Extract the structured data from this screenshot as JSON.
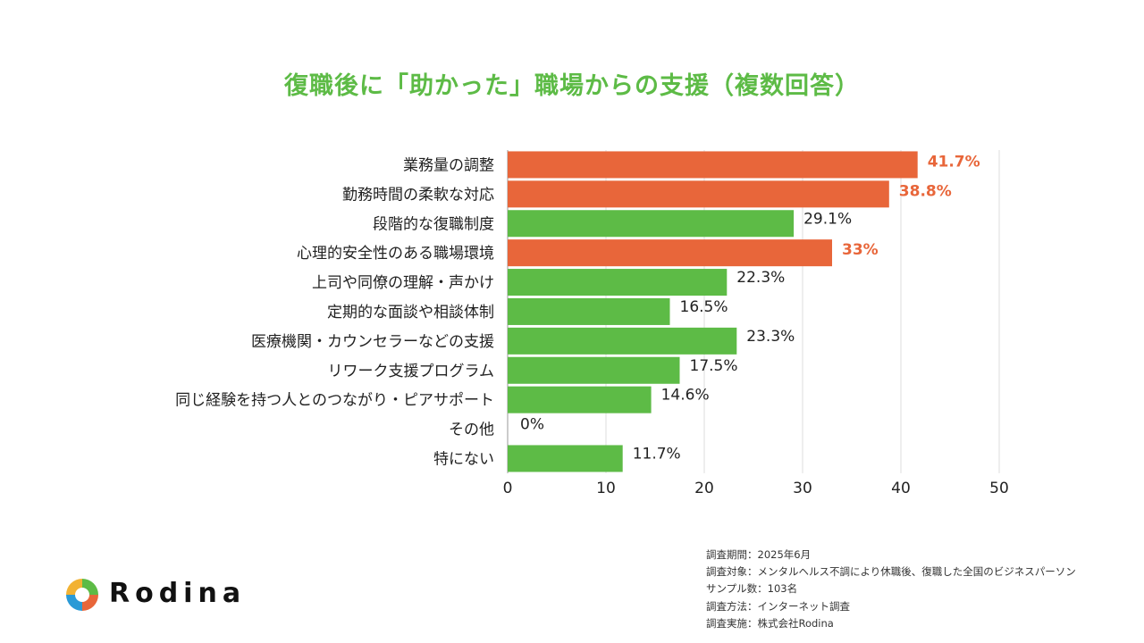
{
  "chart_data": {
    "type": "bar",
    "orientation": "horizontal",
    "title": "復職後に「助かった」職場からの支援（複数回答）",
    "categories": [
      "業務量の調整",
      "勤務時間の柔軟な対応",
      "段階的な復職制度",
      "心理的安全性のある職場環境",
      "上司や同僚の理解・声かけ",
      "定期的な面談や相談体制",
      "医療機関・カウンセラーなどの支援",
      "リワーク支援プログラム",
      "同じ経験を持つ人とのつながり・ピアサポート",
      "その他",
      "特にない"
    ],
    "values": [
      41.7,
      38.8,
      29.1,
      33,
      22.3,
      16.5,
      23.3,
      17.5,
      14.6,
      0,
      11.7
    ],
    "value_labels": [
      "41.7%",
      "38.8%",
      "29.1%",
      "33%",
      "22.3%",
      "16.5%",
      "23.3%",
      "17.5%",
      "14.6%",
      "0%",
      "11.7%"
    ],
    "highlighted": [
      true,
      true,
      false,
      true,
      false,
      false,
      false,
      false,
      false,
      false,
      false
    ],
    "xlim": [
      0,
      50
    ],
    "xticks": [
      0,
      10,
      20,
      30,
      40,
      50
    ],
    "grid": true,
    "colors": {
      "highlight": "#e8663a",
      "normal": "#5dbb46",
      "title": "#5dbb46"
    }
  },
  "notes": [
    "調査期間：2025年6月",
    "調査対象：メンタルヘルス不調により休職後、復職した全国のビジネスパーソン",
    "サンプル数：103名",
    "調査方法：インターネット調査",
    "調査実施：株式会社Rodina"
  ],
  "logo": {
    "text": "Rodina",
    "icon": "rodina-logo-icon"
  }
}
